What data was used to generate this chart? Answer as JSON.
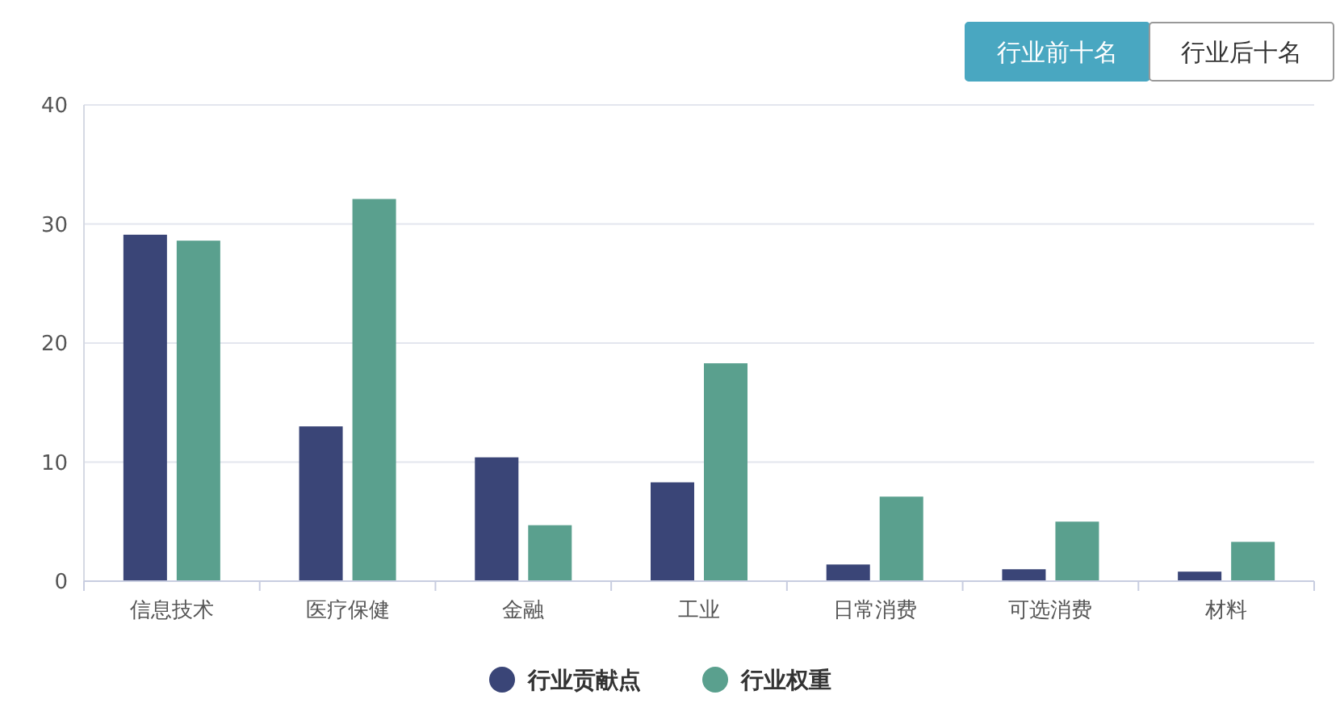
{
  "chart_data": {
    "type": "bar",
    "categories": [
      "信息技术",
      "医疗保健",
      "金融",
      "工业",
      "日常消费",
      "可选消费",
      "材料"
    ],
    "series": [
      {
        "name": "行业贡献点",
        "color": "#3a4577",
        "values": [
          29.1,
          13.0,
          10.4,
          8.3,
          1.4,
          1.0,
          0.8
        ]
      },
      {
        "name": "行业权重",
        "color": "#5aa08e",
        "values": [
          28.6,
          32.1,
          4.7,
          18.3,
          7.1,
          5.0,
          3.3
        ]
      }
    ],
    "ylim": [
      0,
      40
    ],
    "yticks": [
      0,
      10,
      20,
      30,
      40
    ],
    "grid": "y",
    "legend": "bottom",
    "annotations": [
      "行业前十名",
      "行业后十名"
    ]
  }
}
